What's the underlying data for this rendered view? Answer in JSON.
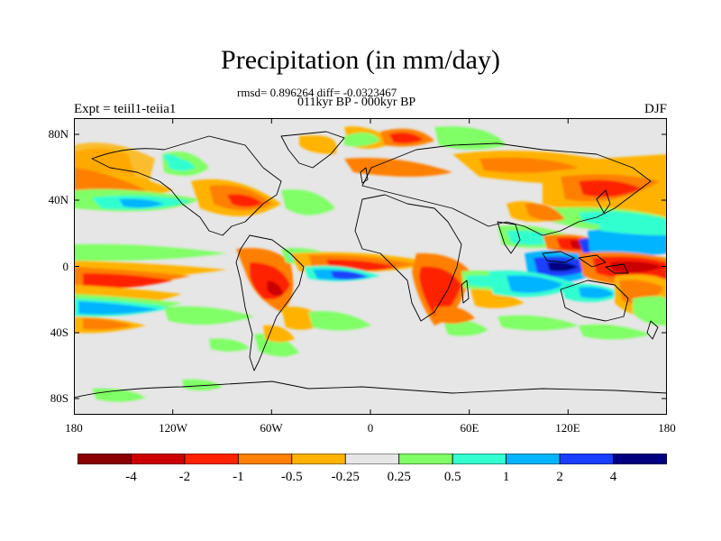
{
  "title": "Precipitation (in mm/day)",
  "stats": "rmsd= 0.896264 diff= -0.0323467",
  "period": "011kyr BP - 000kyr BP",
  "expt": "Expt = teiil1-teiia1",
  "season": "DJF",
  "lat_labels": [
    "80N",
    "40N",
    "0",
    "40S",
    "80S"
  ],
  "lon_labels": [
    "180",
    "120W",
    "60W",
    "0",
    "60E",
    "120E",
    "180"
  ],
  "colorbar": {
    "labels": [
      "-4",
      "-2",
      "-1",
      "-0.5",
      "-0.25",
      "0.25",
      "0.5",
      "1",
      "2",
      "4"
    ],
    "colors": [
      "#8b0000",
      "#cc0000",
      "#ff2200",
      "#ff7f00",
      "#ffb300",
      "#e6e6e6",
      "#80ff66",
      "#33ffd0",
      "#00b4ff",
      "#1a3fff",
      "#000080"
    ]
  },
  "colors": {
    "background_ocean": "#e6e6e6",
    "coastline": "#000000"
  }
}
